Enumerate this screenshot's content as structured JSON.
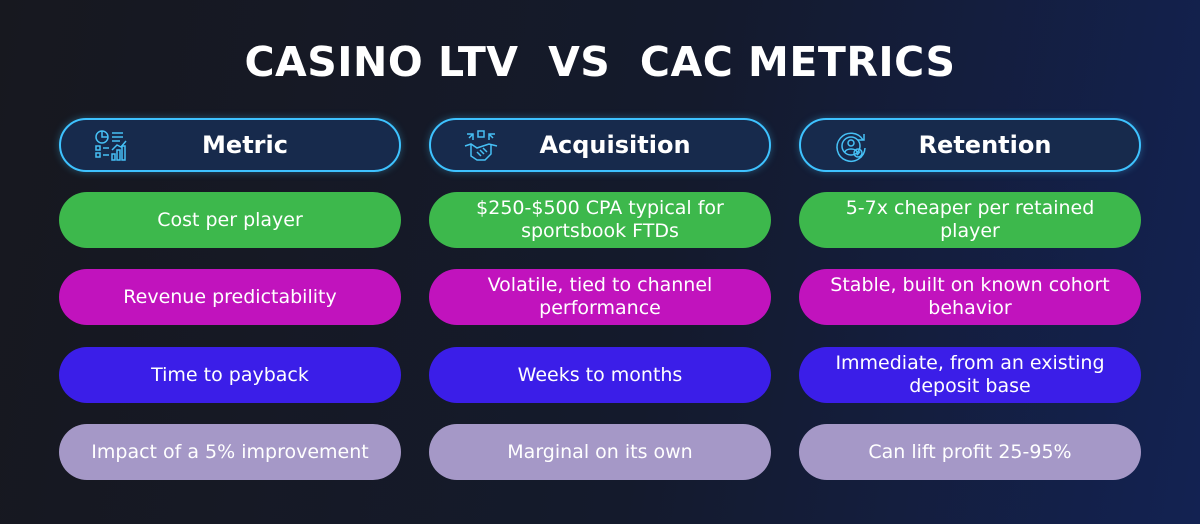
{
  "title": "CASINO LTV  VS  CAC METRICS",
  "columns": [
    {
      "label": "Metric",
      "icon": "report-chart-icon"
    },
    {
      "label": "Acquisition",
      "icon": "handshake-icon"
    },
    {
      "label": "Retention",
      "icon": "retention-target-icon"
    }
  ],
  "rows": [
    {
      "color": "#3db84c",
      "cells": [
        "Cost per player",
        "$250-$500 CPA typical for sportsbook FTDs",
        "5-7x cheaper per retained player"
      ]
    },
    {
      "color": "#c113bd",
      "cells": [
        "Revenue predictability",
        "Volatile, tied to channel performance",
        "Stable, built on known cohort behavior"
      ]
    },
    {
      "color": "#3b1ee8",
      "cells": [
        "Time to payback",
        "Weeks to months",
        "Immediate, from an existing deposit base"
      ]
    },
    {
      "color": "#a598c7",
      "cells": [
        "Impact of a 5% improvement",
        "Marginal on its own",
        "Can lift profit 25-95%"
      ]
    }
  ],
  "colors": {
    "header_border": "#3ec2ff",
    "header_fill": "#172a4c",
    "icon": "#46c0f5"
  }
}
